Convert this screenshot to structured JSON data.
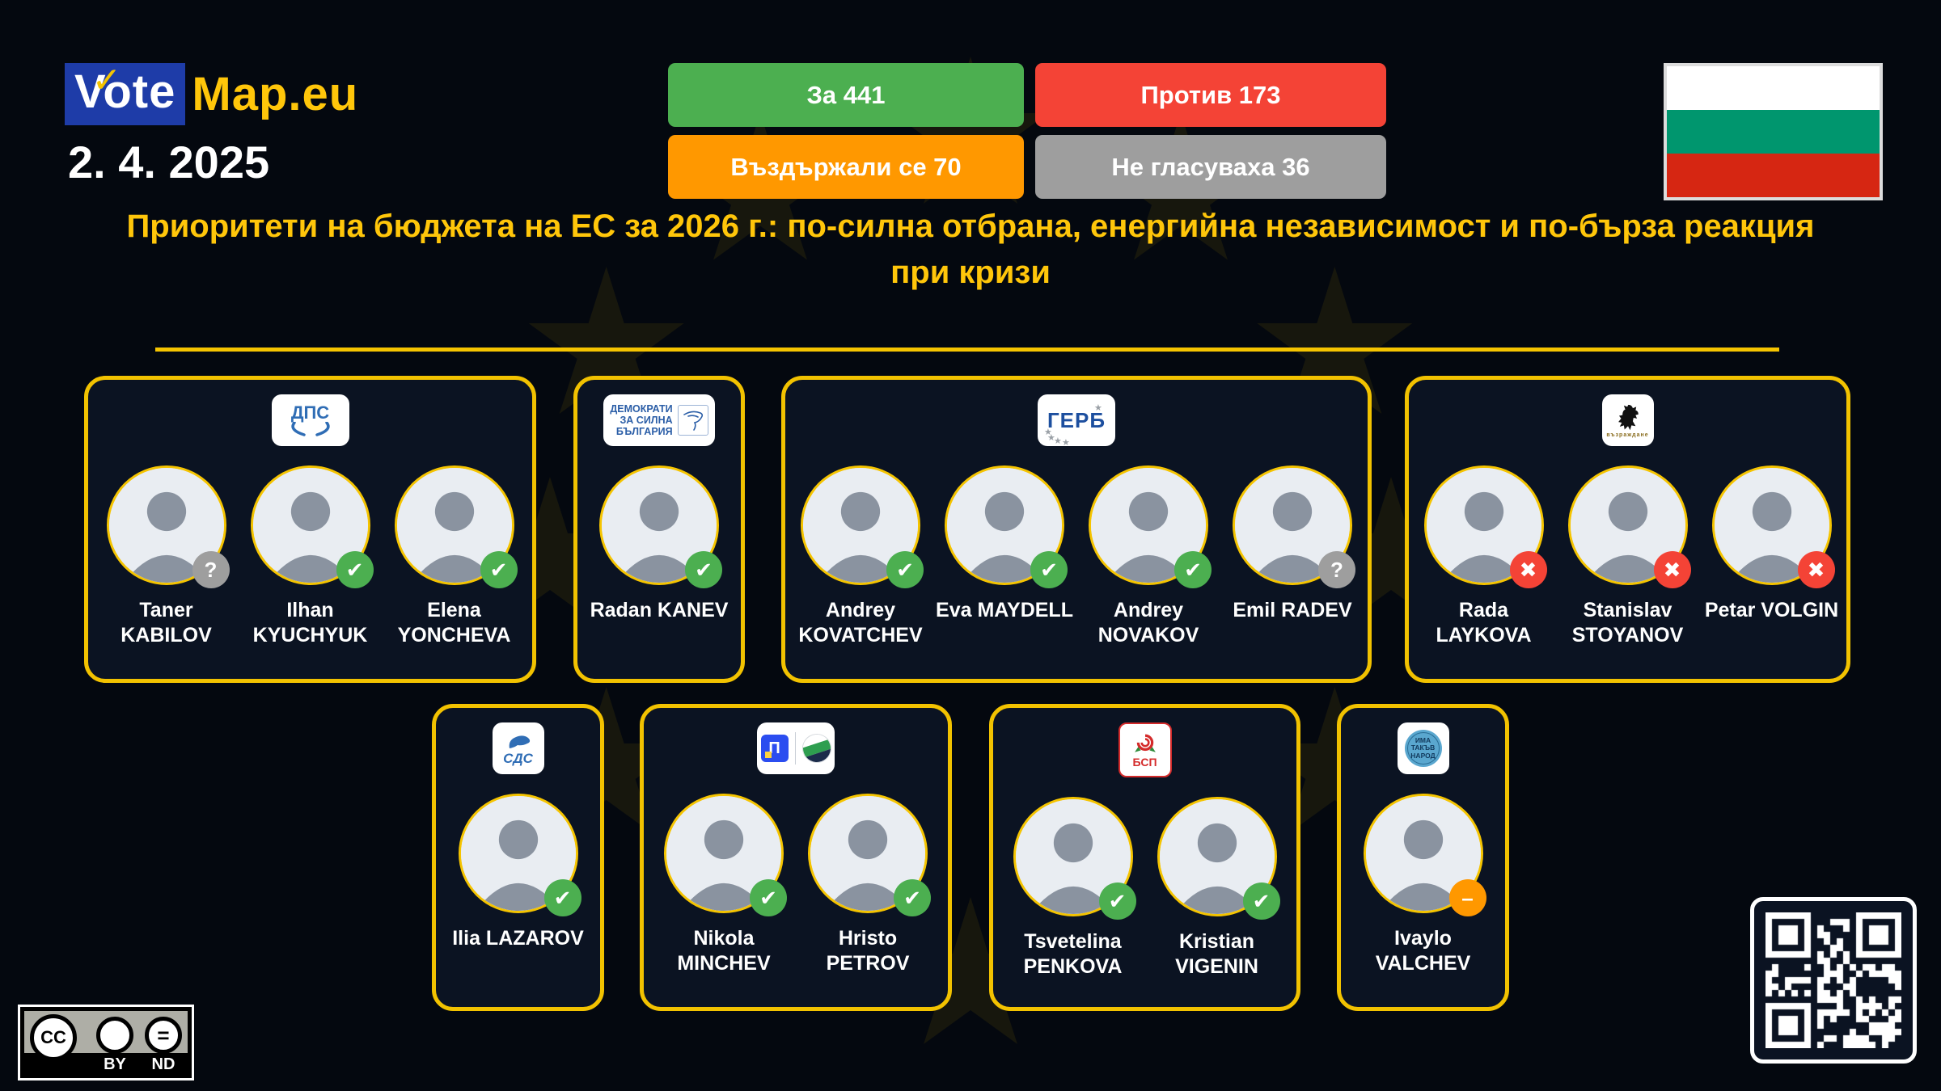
{
  "header": {
    "logo": {
      "vote": "Vote",
      "map": "Map.eu"
    },
    "date": "2. 4. 2025",
    "results": [
      {
        "id": "for",
        "label": "За 441",
        "color": "#4caf50"
      },
      {
        "id": "against",
        "label": "Против 173",
        "color": "#f44336"
      },
      {
        "id": "abstain",
        "label": "Въздържали се 70",
        "color": "#ff9800"
      },
      {
        "id": "novote",
        "label": "Не гласуваха 36",
        "color": "#9e9e9e"
      }
    ],
    "flag": {
      "country": "Bulgaria",
      "colors": [
        "#ffffff",
        "#00966e",
        "#d62612"
      ]
    }
  },
  "title": "Приоритети на бюджета на ЕС за 2026 г.: по-силна отбрана, енергийна независимост и по-бърза реакция при кризи",
  "icons": {
    "logo_check": "✓"
  },
  "badges": {
    "for": {
      "glyph": "✔",
      "color": "#4caf50"
    },
    "against": {
      "glyph": "✖",
      "color": "#f44336"
    },
    "abstain": {
      "glyph": "–",
      "color": "#ff9800"
    },
    "novote": {
      "glyph": "?",
      "color": "#9e9e9e"
    }
  },
  "accent": {
    "gold": "#f2c200",
    "title_gold": "#ffc60a",
    "card_bg": "#0b1322",
    "page_bg": "#04080f"
  },
  "parties": [
    {
      "id": "dps",
      "logo": {
        "type": "dps",
        "text": "ДПС",
        "color": "#2f6db5"
      },
      "members": [
        {
          "name": [
            "Taner",
            "KABILOV"
          ],
          "vote": "novote"
        },
        {
          "name": [
            "Ilhan",
            "KYUCHYUK"
          ],
          "vote": "for"
        },
        {
          "name": [
            "Elena",
            "YONCHEVA"
          ],
          "vote": "for"
        }
      ]
    },
    {
      "id": "dsb",
      "logo": {
        "type": "dsb",
        "lines": [
          "ДЕМОКРАТИ",
          "ЗА СИЛНА",
          "БЪЛГАРИЯ"
        ],
        "color": "#2b5ea7"
      },
      "members": [
        {
          "name": [
            "Radan KANEV"
          ],
          "vote": "for"
        }
      ]
    },
    {
      "id": "gerb",
      "logo": {
        "type": "gerb",
        "text": "ГЕРБ",
        "color": "#1d4f9f"
      },
      "members": [
        {
          "name": [
            "Andrey",
            "KOVATCHEV"
          ],
          "vote": "for"
        },
        {
          "name": [
            "Eva MAYDELL"
          ],
          "vote": "for"
        },
        {
          "name": [
            "Andrey",
            "NOVAKOV"
          ],
          "vote": "for"
        },
        {
          "name": [
            "Emil RADEV"
          ],
          "vote": "novote"
        }
      ]
    },
    {
      "id": "vazrazhdane",
      "logo": {
        "type": "vazrazhdane",
        "text": "възраждане",
        "color": "#111111"
      },
      "members": [
        {
          "name": [
            "Rada",
            "LAYKOVA"
          ],
          "vote": "against"
        },
        {
          "name": [
            "Stanislav",
            "STOYANOV"
          ],
          "vote": "against"
        },
        {
          "name": [
            "Petar VOLGIN"
          ],
          "vote": "against"
        }
      ]
    },
    {
      "id": "sds",
      "logo": {
        "type": "sds",
        "text": "СДС",
        "color": "#2f6db5"
      },
      "members": [
        {
          "name": [
            "Ilia LAZAROV"
          ],
          "vote": "for"
        }
      ]
    },
    {
      "id": "ppdb",
      "logo": {
        "type": "ppdb",
        "text": "П",
        "colors": [
          "#2b4df0",
          "#2e9e4f",
          "#1b2b4a"
        ]
      },
      "members": [
        {
          "name": [
            "Nikola",
            "MINCHEV"
          ],
          "vote": "for"
        },
        {
          "name": [
            "Hristo",
            "PETROV"
          ],
          "vote": "for"
        }
      ]
    },
    {
      "id": "bsp",
      "logo": {
        "type": "bsp",
        "text": "БСП",
        "color": "#d42b2b"
      },
      "members": [
        {
          "name": [
            "Tsvetelina",
            "PENKOVA"
          ],
          "vote": "for"
        },
        {
          "name": [
            "Kristian",
            "VIGENIN"
          ],
          "vote": "for"
        }
      ]
    },
    {
      "id": "itn",
      "logo": {
        "type": "itn",
        "lines": [
          "ИМА",
          "ТАКЪВ",
          "НАРОД"
        ],
        "color": "#5aa7cf"
      },
      "members": [
        {
          "name": [
            "Ivaylo",
            "VALCHEV"
          ],
          "vote": "abstain"
        }
      ]
    }
  ],
  "footer": {
    "license": {
      "cc": "CC",
      "by": "BY",
      "nd": "ND"
    }
  }
}
